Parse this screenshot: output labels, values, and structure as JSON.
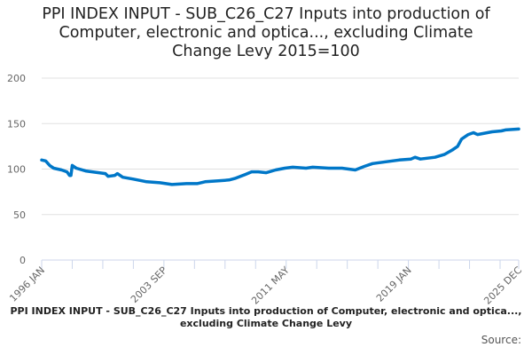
{
  "chart_data": {
    "type": "line",
    "title": "PPI INDEX INPUT - SUB_C26_C27 Inputs into production of Computer, electronic and optica..., excluding Climate Change Levy 2015=100",
    "title_lines": [
      "PPI INDEX INPUT - SUB_C26_C27 Inputs into production of",
      "Computer, electronic and optica..., excluding Climate",
      "Change Levy 2015=100"
    ],
    "xlabel": "",
    "ylabel": "",
    "ylim": [
      0,
      200
    ],
    "y_ticks": [
      "0",
      "50",
      "100",
      "150",
      "200"
    ],
    "x_tick_labels": [
      "1996 JAN",
      "2003 SEP",
      "2011 MAY",
      "2019 JAN",
      "2025 DEC"
    ],
    "x_range_months": [
      0,
      359
    ],
    "grid": true,
    "series": [
      {
        "name": "SUB_C26_C27 Inputs into production of Computer, electronic and optica..., excluding Climate Change Levy",
        "color": "#0077c8",
        "points_month_index_value": [
          [
            0,
            110
          ],
          [
            3,
            109
          ],
          [
            6,
            104
          ],
          [
            9,
            101
          ],
          [
            15,
            99
          ],
          [
            19,
            97
          ],
          [
            21,
            93
          ],
          [
            22,
            93
          ],
          [
            23,
            104
          ],
          [
            26,
            101
          ],
          [
            33,
            98
          ],
          [
            43,
            96
          ],
          [
            48,
            95
          ],
          [
            50,
            92
          ],
          [
            55,
            93
          ],
          [
            57,
            95
          ],
          [
            61,
            91
          ],
          [
            69,
            89
          ],
          [
            79,
            86
          ],
          [
            89,
            85
          ],
          [
            98,
            83
          ],
          [
            109,
            84
          ],
          [
            117,
            84
          ],
          [
            123,
            86
          ],
          [
            133,
            87
          ],
          [
            141,
            88
          ],
          [
            146,
            90
          ],
          [
            153,
            94
          ],
          [
            158,
            97
          ],
          [
            163,
            97
          ],
          [
            169,
            96
          ],
          [
            176,
            99
          ],
          [
            183,
            101
          ],
          [
            189,
            102
          ],
          [
            199,
            101
          ],
          [
            204,
            102
          ],
          [
            216,
            101
          ],
          [
            226,
            101
          ],
          [
            236,
            99
          ],
          [
            243,
            103
          ],
          [
            249,
            106
          ],
          [
            259,
            108
          ],
          [
            269,
            110
          ],
          [
            278,
            111
          ],
          [
            281,
            113
          ],
          [
            285,
            111
          ],
          [
            296,
            113
          ],
          [
            303,
            116
          ],
          [
            309,
            121
          ],
          [
            313,
            125
          ],
          [
            316,
            133
          ],
          [
            321,
            138
          ],
          [
            325,
            140
          ],
          [
            328,
            138
          ],
          [
            339,
            141
          ],
          [
            346,
            142
          ],
          [
            349,
            143
          ],
          [
            359,
            144
          ]
        ]
      }
    ]
  },
  "footer": {
    "legend_text": "PPI INDEX INPUT - SUB_C26_C27 Inputs into production of Computer, electronic and optica..., excluding Climate Change Levy",
    "source_label": "Source:"
  }
}
